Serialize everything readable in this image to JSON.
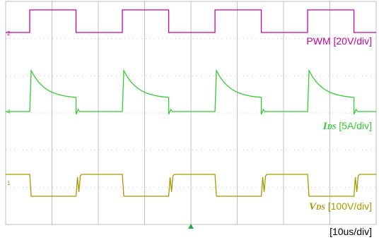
{
  "chart_data": {
    "type": "line",
    "timebase": "[10us/div]",
    "colors": {
      "grid": "#bfbfbf",
      "pwm": "#cc0099",
      "ids": "#33cc33",
      "vds": "#a69a00"
    },
    "channels": [
      {
        "id": "pwm",
        "label": "PWM [20V/div]",
        "marker": "2",
        "color": "#cc0099",
        "edges_div": [
          0.52,
          1.52,
          2.52,
          3.52,
          4.52,
          5.52,
          6.52,
          7.52
        ],
        "initial_state": "low",
        "waveform": "square"
      },
      {
        "id": "ids",
        "label_symbol": "I",
        "label_sub": "DS",
        "label_text": " [5A/div]",
        "marker": "4",
        "color": "#33cc33",
        "edges_div": [
          0.52,
          1.52,
          2.52,
          3.52,
          4.52,
          5.52,
          6.52,
          7.52
        ],
        "peak_div": 1.1,
        "end_div": 0.35,
        "waveform": "decaying pulse"
      },
      {
        "id": "vds",
        "label_symbol": "V",
        "label_sub": "DS",
        "label_text": " [100V/div]",
        "marker": "1",
        "color": "#a69a00",
        "edges_div": [
          0.52,
          1.52,
          2.52,
          3.52,
          4.52,
          5.52,
          6.52,
          7.52
        ],
        "initial_state": "high",
        "waveform": "inverted square"
      }
    ],
    "grid": {
      "hdiv": 8,
      "vdiv": 6
    }
  }
}
